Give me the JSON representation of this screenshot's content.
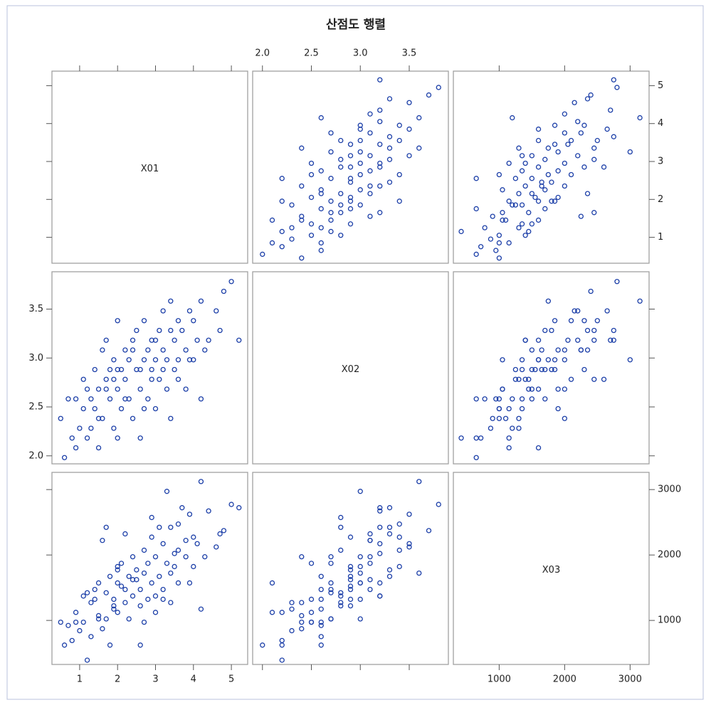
{
  "chart_data": {
    "type": "scatter",
    "title": "산점도 행렬",
    "color": "#1c3fa8",
    "variables": [
      {
        "name": "X01",
        "lim": [
          0.27,
          5.43
        ],
        "ticks": [
          1,
          2,
          3,
          4,
          5
        ],
        "values": [
          0.5,
          0.6,
          0.7,
          0.8,
          0.9,
          1.0,
          1.1,
          1.1,
          1.2,
          1.3,
          1.3,
          1.4,
          1.5,
          1.5,
          1.6,
          1.6,
          1.7,
          1.7,
          1.8,
          1.8,
          1.9,
          1.9,
          2.0,
          2.0,
          2.0,
          2.1,
          2.1,
          2.2,
          2.2,
          2.3,
          2.3,
          2.4,
          2.4,
          2.5,
          2.5,
          2.6,
          2.6,
          2.7,
          2.7,
          2.8,
          2.8,
          2.9,
          2.9,
          3.0,
          3.0,
          3.1,
          3.1,
          3.2,
          3.2,
          3.3,
          3.3,
          3.4,
          3.4,
          3.5,
          3.5,
          3.6,
          3.6,
          3.7,
          3.8,
          3.8,
          3.9,
          4.0,
          4.1,
          4.2,
          4.2,
          4.4,
          4.6,
          4.7,
          4.8,
          5.0,
          5.2,
          0.9,
          1.4,
          2.6,
          1.7,
          3.9,
          2.2,
          2.9,
          3.2,
          1.2,
          4.3,
          2.4,
          3.0,
          1.9,
          3.6,
          2.7,
          2.0,
          3.4,
          1.5,
          4.0
        ]
      },
      {
        "name": "X02",
        "lim": [
          1.9,
          3.9
        ],
        "ticks": [
          {
            "value": 2,
            "label": "2.0"
          },
          2.5,
          {
            "value": 3,
            "label": "3.0"
          },
          3.5
        ],
        "values": [
          2.4,
          2.0,
          2.6,
          2.2,
          2.1,
          2.3,
          2.8,
          2.5,
          2.2,
          2.3,
          2.6,
          2.9,
          2.1,
          2.7,
          3.1,
          2.4,
          2.8,
          3.2,
          2.6,
          2.9,
          2.3,
          3.0,
          2.7,
          3.4,
          2.2,
          2.9,
          2.5,
          3.1,
          2.8,
          2.6,
          3.0,
          3.2,
          2.4,
          2.9,
          3.3,
          2.2,
          2.7,
          3.4,
          3.0,
          2.6,
          3.1,
          2.9,
          3.2,
          2.5,
          3.0,
          3.3,
          2.8,
          3.1,
          3.5,
          2.7,
          3.0,
          3.6,
          2.4,
          3.2,
          2.9,
          3.4,
          3.0,
          3.3,
          2.7,
          3.1,
          3.5,
          3.0,
          3.2,
          2.6,
          3.6,
          3.2,
          3.5,
          3.3,
          3.7,
          3.8,
          3.2,
          2.6,
          2.5,
          2.9,
          2.7,
          3.0,
          2.6,
          2.8,
          2.9,
          2.7,
          3.1,
          3.1,
          3.2,
          2.8,
          2.8,
          2.5,
          2.9,
          3.3,
          2.4,
          3.4
        ]
      },
      {
        "name": "X03",
        "lim": [
          300,
          3290
        ],
        "ticks": [
          1000,
          2000,
          3000
        ],
        "values": [
          1000,
          650,
          950,
          720,
          1150,
          870,
          1400,
          1000,
          420,
          1300,
          780,
          1500,
          1600,
          1050,
          2250,
          900,
          1450,
          2450,
          650,
          1700,
          1200,
          1350,
          1600,
          1850,
          1150,
          1550,
          1900,
          2350,
          1300,
          1700,
          1050,
          1400,
          2000,
          1650,
          1800,
          650,
          1500,
          2100,
          1750,
          1350,
          1900,
          2300,
          1600,
          1150,
          2000,
          1700,
          2450,
          1500,
          2200,
          1900,
          3000,
          1750,
          1300,
          2050,
          1850,
          2500,
          1600,
          2750,
          2000,
          2250,
          2650,
          1850,
          2200,
          1200,
          3150,
          2700,
          2150,
          2350,
          2400,
          2800,
          2750,
          1000,
          1350,
          1250,
          1050,
          1600,
          1500,
          2600,
          1350,
          1450,
          2000,
          1650,
          1400,
          1250,
          2100,
          1000,
          1800,
          2450,
          1100,
          2300
        ]
      }
    ]
  }
}
